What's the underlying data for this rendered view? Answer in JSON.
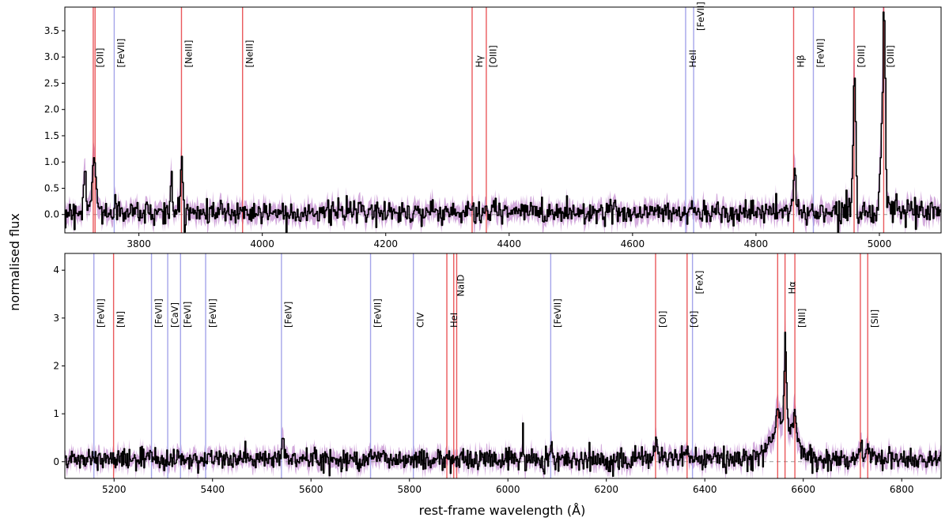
{
  "chart_data": {
    "type": "line",
    "ylabel": "normalised flux",
    "xlabel": "rest-frame wavelength (Å)",
    "colors": {
      "spectrum": "#000000",
      "uncertainty": "#c48fd0",
      "emission_line": "#e8474a",
      "coronal_line": "#9b9be8",
      "zero_line": "#999999"
    },
    "panels": [
      {
        "xlim": [
          3680,
          5100
        ],
        "ylim": [
          -0.35,
          3.95
        ],
        "xticks": [
          3800,
          4000,
          4200,
          4400,
          4600,
          4800,
          5000
        ],
        "yticks": [
          0.0,
          0.5,
          1.0,
          1.5,
          2.0,
          2.5,
          3.0,
          3.5
        ],
        "ytick_labels": [
          "0.0",
          "0.5",
          "1.0",
          "1.5",
          "2.0",
          "2.5",
          "3.0",
          "3.5"
        ],
        "peaks": [
          {
            "x": 3727,
            "a": 1.0,
            "s": 3
          },
          {
            "x": 3712,
            "a": 0.85,
            "s": 2
          },
          {
            "x": 3869,
            "a": 0.8,
            "s": 2
          },
          {
            "x": 3852,
            "a": 0.75,
            "s": 1.5
          },
          {
            "x": 4862,
            "a": 0.85,
            "s": 2
          },
          {
            "x": 4959,
            "a": 2.5,
            "s": 2
          },
          {
            "x": 4954,
            "a": 0.2,
            "s": 6
          },
          {
            "x": 5007,
            "a": 3.8,
            "s": 2
          },
          {
            "x": 5002,
            "a": 0.9,
            "s": 3
          }
        ],
        "lines": [
          {
            "x": 3726,
            "label": "[OII]",
            "group": "emission"
          },
          {
            "x": 3729,
            "label": "",
            "group": "emission"
          },
          {
            "x": 3760,
            "label": "[FeVII]",
            "group": "coronal"
          },
          {
            "x": 3869,
            "label": "[NeIII]",
            "group": "emission"
          },
          {
            "x": 3968,
            "label": "[NeIII]",
            "group": "emission"
          },
          {
            "x": 4340,
            "label": "Hγ",
            "group": "emission"
          },
          {
            "x": 4363,
            "label": "[OIII]",
            "group": "emission"
          },
          {
            "x": 4686,
            "label": "HeII",
            "group": "coronal"
          },
          {
            "x": 4699,
            "label": "[FeVII]",
            "group": "coronal",
            "label_y": 3.5
          },
          {
            "x": 4861,
            "label": "Hβ",
            "group": "emission"
          },
          {
            "x": 4893,
            "label": "[FeVII]",
            "group": "coronal"
          },
          {
            "x": 4959,
            "label": "[OIII]",
            "group": "emission"
          },
          {
            "x": 5007,
            "label": "[OIII]",
            "group": "emission"
          }
        ]
      },
      {
        "xlim": [
          5100,
          6880
        ],
        "ylim": [
          -0.35,
          4.35
        ],
        "xticks": [
          5200,
          5400,
          5600,
          5800,
          6000,
          6200,
          6400,
          6600,
          6800
        ],
        "yticks": [
          0,
          1,
          2,
          3,
          4
        ],
        "ytick_labels": [
          "0",
          "1",
          "2",
          "3",
          "4"
        ],
        "peaks": [
          {
            "x": 5542,
            "a": 0.3,
            "s": 4
          },
          {
            "x": 5720,
            "a": 0.15,
            "s": 6
          },
          {
            "x": 6030,
            "a": 0.65,
            "s": 1
          },
          {
            "x": 6087,
            "a": 0.35,
            "s": 2
          },
          {
            "x": 6300,
            "a": 0.3,
            "s": 5
          },
          {
            "x": 6363,
            "a": 0.15,
            "s": 5
          },
          {
            "x": 6560,
            "a": 0.8,
            "s": 22
          },
          {
            "x": 6548,
            "a": 0.45,
            "s": 3
          },
          {
            "x": 6563,
            "a": 1.6,
            "s": 2.5
          },
          {
            "x": 6583,
            "a": 0.5,
            "s": 3
          },
          {
            "x": 6716,
            "a": 0.3,
            "s": 4
          },
          {
            "x": 6731,
            "a": 0.25,
            "s": 4
          }
        ],
        "lines": [
          {
            "x": 5159,
            "label": "[FeVII]",
            "group": "coronal"
          },
          {
            "x": 5199,
            "label": "[NI]",
            "group": "emission"
          },
          {
            "x": 5276,
            "label": "[FeVII]",
            "group": "coronal"
          },
          {
            "x": 5309,
            "label": "[CaV]",
            "group": "coronal"
          },
          {
            "x": 5335,
            "label": "[FeVI]",
            "group": "coronal"
          },
          {
            "x": 5386,
            "label": "[FeVII]",
            "group": "coronal"
          },
          {
            "x": 5540,
            "label": "[FeIV]",
            "group": "coronal"
          },
          {
            "x": 5721,
            "label": "[FeVII]",
            "group": "coronal"
          },
          {
            "x": 5808,
            "label": "CIV",
            "group": "coronal"
          },
          {
            "x": 5876,
            "label": "HeI",
            "group": "emission"
          },
          {
            "x": 5890,
            "label": "NaID",
            "group": "emission",
            "label_y": 3.45
          },
          {
            "x": 5896,
            "label": "",
            "group": "emission"
          },
          {
            "x": 6087,
            "label": "[FeVII]",
            "group": "coronal"
          },
          {
            "x": 6300,
            "label": "[OI]",
            "group": "emission"
          },
          {
            "x": 6364,
            "label": "[OI]",
            "group": "emission"
          },
          {
            "x": 6375,
            "label": "[FeX]",
            "group": "coronal",
            "label_y": 3.5
          },
          {
            "x": 6548,
            "label": "",
            "group": "emission"
          },
          {
            "x": 6563,
            "label": "Hα",
            "group": "emission",
            "label_y": 3.5
          },
          {
            "x": 6583,
            "label": "[NII]",
            "group": "emission"
          },
          {
            "x": 6716,
            "label": "",
            "group": "emission"
          },
          {
            "x": 6731,
            "label": "[SII]",
            "group": "emission"
          }
        ]
      }
    ]
  }
}
